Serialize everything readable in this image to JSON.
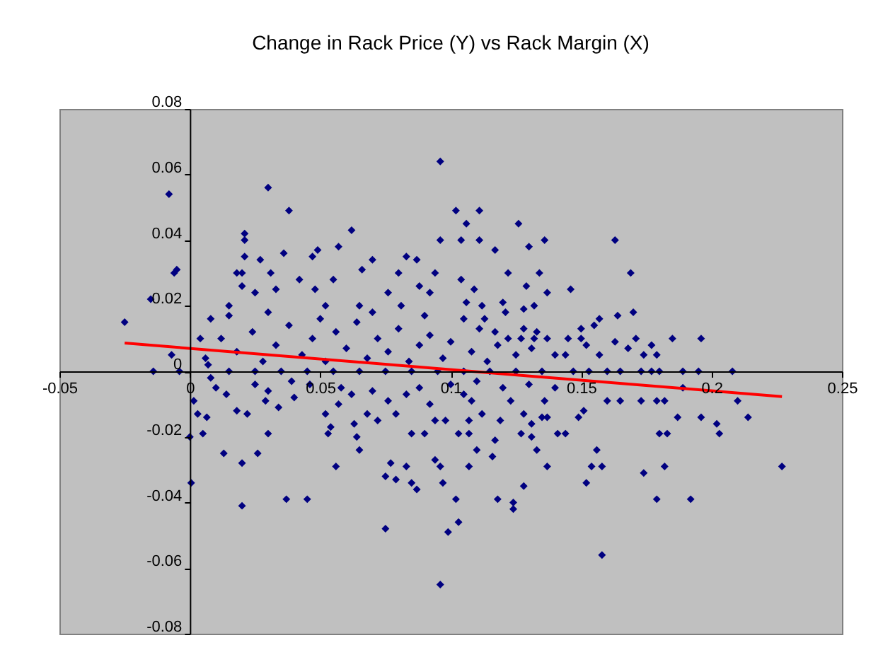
{
  "chart_data": {
    "type": "scatter",
    "title": "Change in Rack Price (Y) vs Rack Margin (X)",
    "xlim": [
      -0.05,
      0.25
    ],
    "xticks": [
      -0.05,
      0,
      0.05,
      0.1,
      0.15,
      0.2,
      0.25
    ],
    "ylim": [
      -0.08,
      0.08
    ],
    "yticks": [
      -0.08,
      -0.06,
      -0.04,
      -0.02,
      0,
      0.02,
      0.04,
      0.06,
      0.08
    ],
    "series": [
      {
        "marker": "diamond",
        "color": "#000080",
        "x": [
          -0.025,
          -0.008,
          -0.005,
          -0.006,
          -0.015,
          -0.007,
          0.03,
          0.038,
          0.062,
          0.096,
          0.102,
          0.021,
          0.021,
          0.021,
          0.027,
          0.036,
          0.047,
          0.049,
          0.057,
          0.066,
          0.07,
          0.083,
          0.087,
          0.094,
          0.096,
          0.018,
          0.02,
          0.031,
          0.008,
          0.015,
          0.02,
          0.025,
          0.033,
          0.042,
          0.055,
          0.048,
          0.052,
          0.065,
          0.076,
          0.08,
          0.088,
          0.092,
          0.081,
          0.111,
          0.106,
          0.126,
          0.104,
          0.111,
          0.13,
          0.136,
          0.163,
          0.117,
          0.122,
          0.134,
          0.169,
          0.104,
          0.109,
          0.129,
          0.137,
          0.146,
          0.106,
          0.112,
          0.12,
          0.128,
          0.132,
          0.121,
          0.105,
          0.113,
          0.164,
          0.17,
          0.157,
          0.155,
          0.15,
          0.128,
          0.111,
          0.117,
          0.133,
          0.171,
          0.185,
          0.196,
          0.177,
          0.163,
          0.168,
          0.145,
          0.15,
          0.174,
          0.179,
          0.14,
          0.144,
          0.157,
          0.152,
          0.122,
          0.127,
          0.132,
          0.137,
          0.208,
          0.21,
          0.214,
          0.202,
          0.203,
          0.196,
          0.187,
          0.18,
          0.183,
          0.156,
          0.154,
          0.158,
          0.152,
          0.174,
          0.182,
          0.227,
          0.179,
          0.192,
          0.158,
          0.128,
          0.124,
          0.124,
          0.118,
          0.137,
          0.107,
          0.103,
          0.102,
          0.11,
          0.116,
          0.133,
          0.141,
          0.144,
          0.127,
          0.131,
          0.117,
          0.103,
          0.107,
          0.16,
          0.165,
          0.173,
          0.179,
          0.182,
          0.149,
          0.151,
          0.136,
          0.137,
          0.189,
          0.147,
          0.153,
          0.16,
          0.165,
          0.173,
          0.177,
          0.18,
          0.189,
          0.195,
          0.112,
          0.119,
          0.123,
          0.108,
          0.107,
          0.128,
          0.131,
          0.135,
          -0.014,
          -0.004,
          0.0015,
          0.003,
          0.0065,
          0.0,
          0.005,
          0.0005,
          0.013,
          0.02,
          0.02,
          0.026,
          0.03,
          0.037,
          0.045,
          0.056,
          0.053,
          0.054,
          0.065,
          0.064,
          0.063,
          0.075,
          0.077,
          0.079,
          0.083,
          0.085,
          0.087,
          0.075,
          0.094,
          0.096,
          0.097,
          0.099,
          0.096,
          0.085,
          0.09,
          0.094,
          0.098,
          0.018,
          0.022,
          0.029,
          0.034,
          0.014,
          0.01,
          0.052,
          0.057,
          0.068,
          0.072,
          0.079,
          0.062,
          0.076,
          0.083,
          0.039,
          0.03,
          0.025,
          0.007,
          0.008,
          0.015,
          0.025,
          0.035,
          0.045,
          0.055,
          0.065,
          0.075,
          0.085,
          0.095,
          0.105,
          0.115,
          0.125,
          0.135,
          0.012,
          0.018,
          0.024,
          0.028,
          0.033,
          0.038,
          0.043,
          0.047,
          0.052,
          0.056,
          0.06,
          0.064,
          0.068,
          0.072,
          0.076,
          0.08,
          0.084,
          0.088,
          0.092,
          0.097,
          0.1,
          0.108,
          0.114,
          0.118,
          0.125,
          0.131,
          0.015,
          0.03,
          0.05,
          0.07,
          0.09,
          0.004,
          0.006,
          0.04,
          0.046,
          0.058,
          0.07,
          0.088,
          0.092,
          0.1,
          0.105,
          0.11,
          0.12,
          0.13,
          0.14
        ],
        "values": [
          0.015,
          0.054,
          0.031,
          0.03,
          0.022,
          0.005,
          0.056,
          0.049,
          0.043,
          0.064,
          0.049,
          0.042,
          0.04,
          0.035,
          0.034,
          0.036,
          0.035,
          0.037,
          0.038,
          0.031,
          0.034,
          0.035,
          0.034,
          0.03,
          0.04,
          0.03,
          0.03,
          0.03,
          0.016,
          0.02,
          0.026,
          0.024,
          0.025,
          0.028,
          0.028,
          0.025,
          0.02,
          0.02,
          0.024,
          0.03,
          0.026,
          0.024,
          0.02,
          0.049,
          0.045,
          0.045,
          0.04,
          0.04,
          0.038,
          0.04,
          0.04,
          0.037,
          0.03,
          0.03,
          0.03,
          0.028,
          0.025,
          0.026,
          0.024,
          0.025,
          0.021,
          0.02,
          0.021,
          0.019,
          0.02,
          0.018,
          0.016,
          0.016,
          0.017,
          0.018,
          0.016,
          0.014,
          0.013,
          0.013,
          0.013,
          0.012,
          0.012,
          0.01,
          0.01,
          0.01,
          0.008,
          0.009,
          0.007,
          0.01,
          0.01,
          0.005,
          0.005,
          0.005,
          0.005,
          0.005,
          0.008,
          0.01,
          0.01,
          0.01,
          0.01,
          0,
          -0.009,
          -0.014,
          -0.016,
          -0.019,
          -0.014,
          -0.014,
          -0.019,
          -0.019,
          -0.024,
          -0.029,
          -0.029,
          -0.034,
          -0.031,
          -0.029,
          -0.029,
          -0.039,
          -0.039,
          -0.056,
          -0.035,
          -0.04,
          -0.042,
          -0.039,
          -0.029,
          -0.029,
          -0.046,
          -0.039,
          -0.024,
          -0.026,
          -0.024,
          -0.019,
          -0.019,
          -0.019,
          -0.02,
          -0.021,
          -0.019,
          -0.019,
          -0.009,
          -0.009,
          -0.009,
          -0.009,
          -0.009,
          -0.014,
          -0.012,
          -0.009,
          -0.014,
          -0.005,
          0,
          0,
          0,
          0,
          0,
          0,
          0,
          0,
          0,
          -0.013,
          -0.015,
          -0.009,
          -0.009,
          -0.015,
          -0.013,
          -0.016,
          -0.014,
          0,
          0,
          -0.009,
          -0.013,
          -0.014,
          -0.02,
          -0.019,
          -0.034,
          -0.025,
          -0.028,
          -0.041,
          -0.025,
          -0.019,
          -0.039,
          -0.039,
          -0.029,
          -0.019,
          -0.017,
          -0.024,
          -0.02,
          -0.016,
          -0.032,
          -0.028,
          -0.033,
          -0.029,
          -0.034,
          -0.036,
          -0.048,
          -0.027,
          -0.029,
          -0.034,
          -0.049,
          -0.065,
          -0.019,
          -0.019,
          -0.015,
          -0.015,
          -0.012,
          -0.013,
          -0.009,
          -0.011,
          -0.007,
          -0.005,
          -0.013,
          -0.01,
          -0.013,
          -0.015,
          -0.013,
          -0.007,
          -0.009,
          -0.007,
          -0.003,
          -0.006,
          -0.004,
          0.002,
          -0.002,
          0,
          0,
          0,
          0,
          0,
          0,
          0,
          0,
          0,
          0,
          0,
          0,
          0,
          0.01,
          0.006,
          0.012,
          0.003,
          0.008,
          0.014,
          0.005,
          0.01,
          0.003,
          0.012,
          0.007,
          0.015,
          0.004,
          0.01,
          0.006,
          0.013,
          0.003,
          0.008,
          0.011,
          0.004,
          0.009,
          0.006,
          0.003,
          0.008,
          0.005,
          0.007,
          0.017,
          0.018,
          0.016,
          0.018,
          0.017,
          0.01,
          0.004,
          -0.008,
          -0.004,
          -0.005,
          -0.006,
          -0.005,
          -0.01,
          -0.004,
          -0.007,
          -0.003,
          -0.005,
          -0.004,
          -0.005
        ]
      },
      {
        "type": "line",
        "color": "#ff0000",
        "x": [
          -0.025,
          0.227
        ],
        "values": [
          0.0086,
          -0.0077
        ]
      }
    ]
  }
}
